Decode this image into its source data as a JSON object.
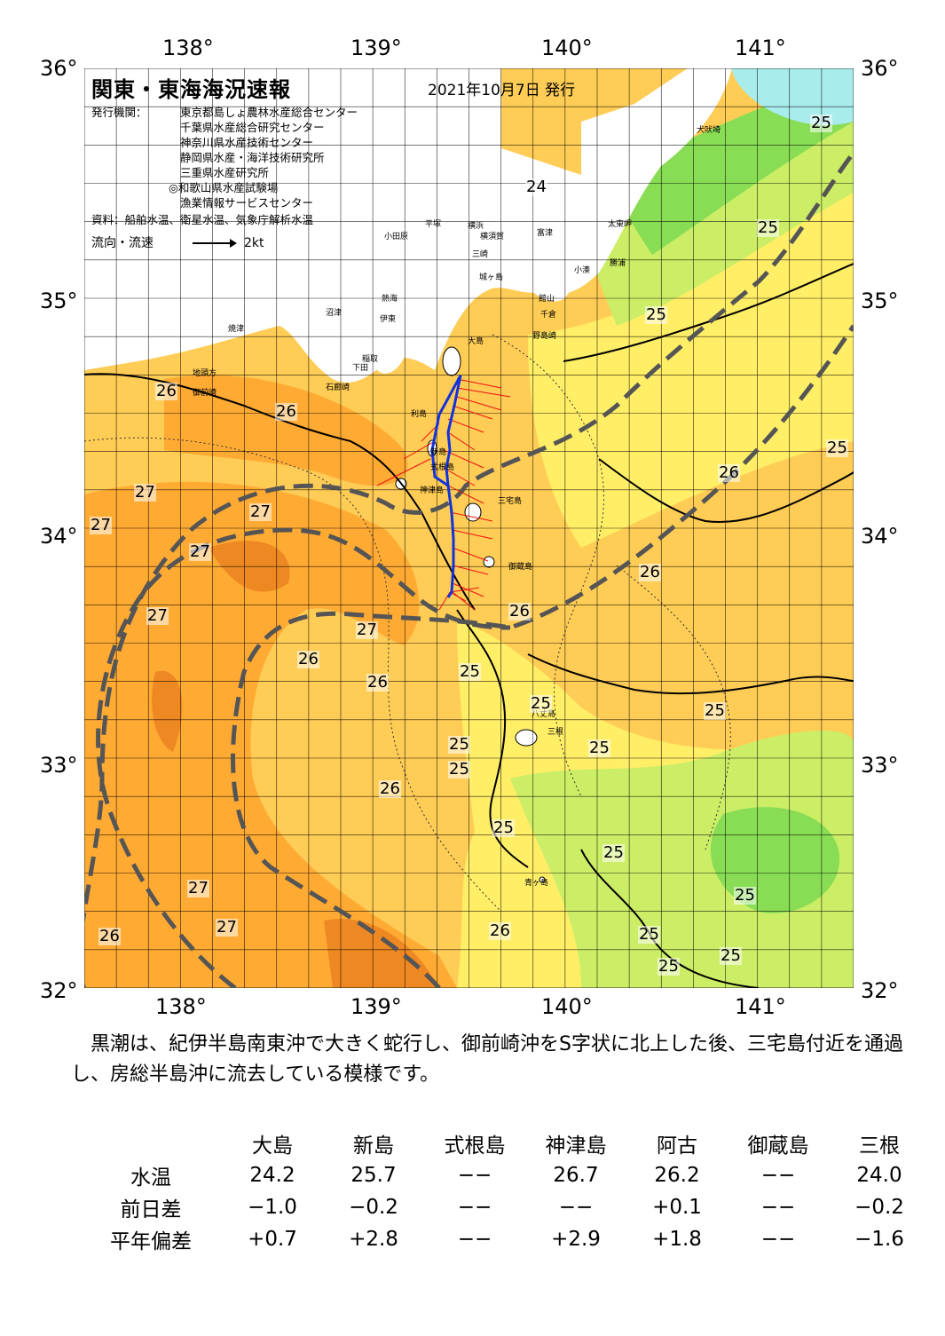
{
  "map": {
    "title": "関東・東海海況速報",
    "issue_date": "2021年10月7日 発行",
    "issuer_label": "発行機関：",
    "issuers": [
      "東京都島しょ農林水産総合センター",
      "千葉県水産総合研究センター",
      "神奈川県水産技術センター",
      "静岡県水産・海洋技術研究所",
      "三重県水産研究所",
      "◎和歌山県水産試験場",
      "漁業情報サービスセンター"
    ],
    "sources": "資料：船舶水温、衛星水温、気象庁解析水温",
    "flow_label": "流向・流速",
    "flow_scale": "2kt",
    "lon_labels": [
      "138°",
      "139°",
      "140°",
      "141°"
    ],
    "lat_labels": [
      "36°",
      "35°",
      "34°",
      "33°",
      "32°"
    ],
    "colors": {
      "cool_cyan": "#a8ecec",
      "green": "#88dd55",
      "yellow_green": "#ccee66",
      "yellow": "#ffee66",
      "light_orange": "#ffcc55",
      "orange": "#ffaa33",
      "deep_orange": "#ee8822",
      "land": "#ffffff",
      "kuroshio_axis": "#555555",
      "ship_track": "#1133dd",
      "current_vectors": "#ee1111"
    },
    "place_names": [
      "犬吠埼",
      "太東岬",
      "勝浦",
      "小湊",
      "館山",
      "千倉",
      "野島崎",
      "富津",
      "横須賀",
      "三崎",
      "城ヶ島",
      "平塚",
      "小田原",
      "横浜",
      "熱海",
      "伊東",
      "稲取",
      "下田",
      "石廊崎",
      "沼津",
      "焼津",
      "地頭方",
      "御前崎",
      "大島",
      "利島",
      "新島",
      "式根島",
      "神津島",
      "三宅島",
      "御蔵島",
      "八丈島",
      "三根",
      "青ヶ島"
    ],
    "isotherms": [
      "25",
      "24",
      "25",
      "25",
      "25",
      "26",
      "26",
      "27",
      "27",
      "27",
      "27",
      "27",
      "26",
      "27",
      "26",
      "26",
      "25",
      "25",
      "25",
      "25",
      "25",
      "26",
      "25",
      "25",
      "25",
      "27",
      "26",
      "27",
      "26",
      "25",
      "25",
      "25",
      "26",
      "26",
      "25"
    ]
  },
  "summary": "黒潮は、紀伊半島南東沖で大きく蛇行し、御前崎沖をS字状に北上した後、三宅島付近を通過し、房総半島沖に流去している模様です。",
  "table": {
    "stations": [
      "大島",
      "新島",
      "式根島",
      "神津島",
      "阿古",
      "御蔵島",
      "三根"
    ],
    "rows": [
      {
        "label": "水温",
        "values": [
          "24.2",
          "25.7",
          "−−",
          "26.7",
          "26.2",
          "−−",
          "24.0"
        ]
      },
      {
        "label": "前日差",
        "values": [
          "−1.0",
          "−0.2",
          "−−",
          "−−",
          "+0.1",
          "−−",
          "−0.2"
        ]
      },
      {
        "label": "平年偏差",
        "values": [
          "+0.7",
          "+2.8",
          "−−",
          "+2.9",
          "+1.8",
          "−−",
          "−1.6"
        ]
      }
    ]
  }
}
